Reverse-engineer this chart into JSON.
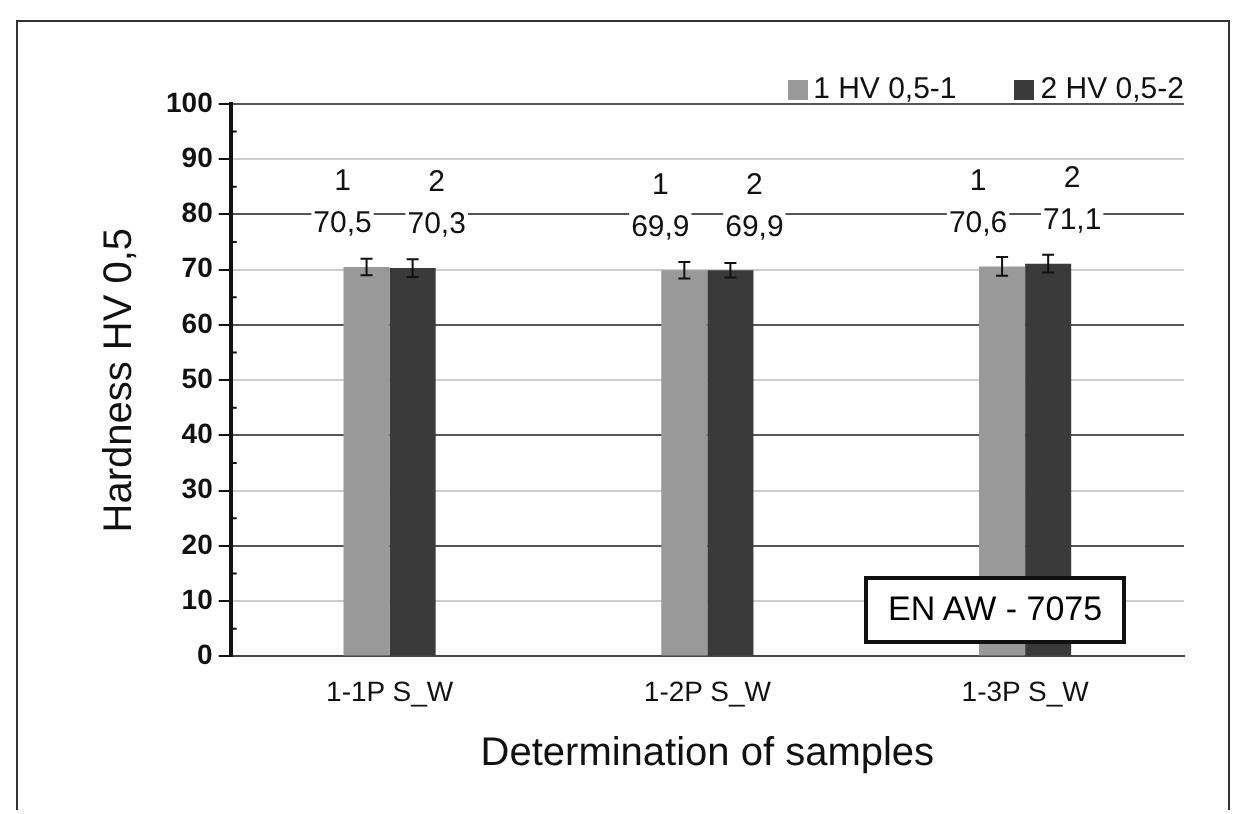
{
  "chart_data": {
    "type": "bar",
    "xlabel": "Determination of samples",
    "ylabel": "Hardness HV 0,5",
    "categories": [
      "1-1P S_W",
      "1-2P S_W",
      "1-3P S_W"
    ],
    "series": [
      {
        "name": "1 HV 0,5-1",
        "color": "#999999",
        "values": [
          70.5,
          69.9,
          70.6
        ],
        "errors": [
          1.5,
          1.5,
          1.7
        ],
        "value_labels": [
          "1\n70,5",
          "1\n69,9",
          "1\n70,6"
        ]
      },
      {
        "name": "2 HV 0,5-2",
        "color": "#3a3a3a",
        "values": [
          70.3,
          69.9,
          71.1
        ],
        "errors": [
          1.6,
          1.3,
          1.6
        ],
        "value_labels": [
          "2\n70,3",
          "2\n69,9",
          "2\n71,1"
        ]
      }
    ],
    "ylim": [
      0,
      100
    ],
    "yticks": [
      0,
      10,
      20,
      30,
      40,
      50,
      60,
      70,
      80,
      90,
      100
    ],
    "grid": "y",
    "legend": "top right",
    "annotations": [
      "EN AW - 7075"
    ]
  }
}
